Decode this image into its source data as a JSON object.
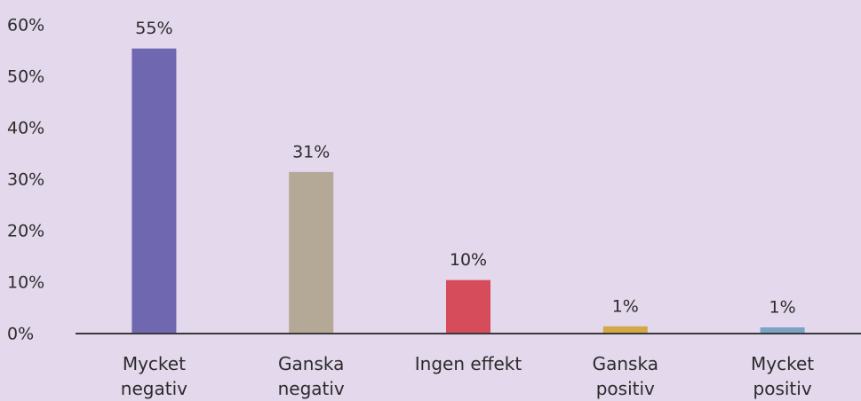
{
  "chart_data": {
    "type": "bar",
    "categories": [
      "Mycket negativ",
      "Ganska negativ",
      "Ingen effekt",
      "Ganska positiv",
      "Mycket positiv"
    ],
    "values": [
      55.4,
      31.4,
      10.4,
      1.4,
      1.2
    ],
    "value_labels": [
      "55%",
      "31%",
      "10%",
      "1%",
      "1%"
    ],
    "colors": [
      "#6f68b0",
      "#b3a996",
      "#d64c5a",
      "#d4a943",
      "#7ba3c6"
    ],
    "ylim": [
      0,
      60
    ],
    "yticks": [
      {
        "value": 0,
        "label": "0%"
      },
      {
        "value": 10,
        "label": "10%"
      },
      {
        "value": 20,
        "label": "20%"
      },
      {
        "value": 30,
        "label": "30%"
      },
      {
        "value": 40,
        "label": "40%"
      },
      {
        "value": 50,
        "label": "50%"
      },
      {
        "value": 60,
        "label": "60%"
      }
    ],
    "grid": false
  }
}
